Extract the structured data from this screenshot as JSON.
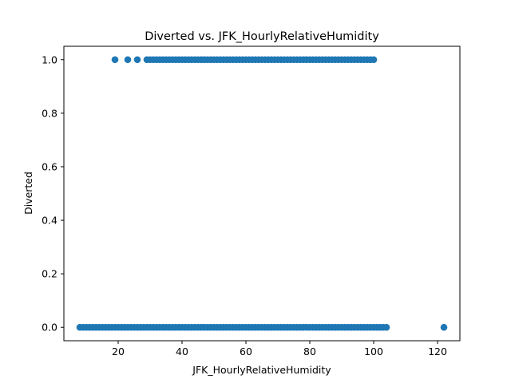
{
  "chart_data": {
    "type": "scatter",
    "title": "Diverted vs. JFK_HourlyRelativeHumidity",
    "xlabel": "JFK_HourlyRelativeHumidity",
    "ylabel": "Diverted",
    "xlim": [
      3,
      127
    ],
    "ylim": [
      -0.05,
      1.05
    ],
    "xticks": [
      20,
      40,
      60,
      80,
      100,
      120
    ],
    "xtick_labels": [
      "20",
      "40",
      "60",
      "80",
      "100",
      "120"
    ],
    "yticks": [
      0.0,
      0.2,
      0.4,
      0.6,
      0.8,
      1.0
    ],
    "ytick_labels": [
      "0.0",
      "0.2",
      "0.4",
      "0.6",
      "0.8",
      "1.0"
    ],
    "grid": false,
    "legend": "none",
    "series": [
      {
        "color": "#1f77b4",
        "points": [
          [
            8,
            0
          ],
          [
            9,
            0
          ],
          [
            10,
            0
          ],
          [
            11,
            0
          ],
          [
            12,
            0
          ],
          [
            13,
            0
          ],
          [
            14,
            0
          ],
          [
            15,
            0
          ],
          [
            16,
            0
          ],
          [
            17,
            0
          ],
          [
            18,
            0
          ],
          [
            19,
            0
          ],
          [
            20,
            0
          ],
          [
            21,
            0
          ],
          [
            22,
            0
          ],
          [
            23,
            0
          ],
          [
            24,
            0
          ],
          [
            25,
            0
          ],
          [
            26,
            0
          ],
          [
            27,
            0
          ],
          [
            28,
            0
          ],
          [
            29,
            0
          ],
          [
            30,
            0
          ],
          [
            31,
            0
          ],
          [
            32,
            0
          ],
          [
            33,
            0
          ],
          [
            34,
            0
          ],
          [
            35,
            0
          ],
          [
            36,
            0
          ],
          [
            37,
            0
          ],
          [
            38,
            0
          ],
          [
            39,
            0
          ],
          [
            40,
            0
          ],
          [
            41,
            0
          ],
          [
            42,
            0
          ],
          [
            43,
            0
          ],
          [
            44,
            0
          ],
          [
            45,
            0
          ],
          [
            46,
            0
          ],
          [
            47,
            0
          ],
          [
            48,
            0
          ],
          [
            49,
            0
          ],
          [
            50,
            0
          ],
          [
            51,
            0
          ],
          [
            52,
            0
          ],
          [
            53,
            0
          ],
          [
            54,
            0
          ],
          [
            55,
            0
          ],
          [
            56,
            0
          ],
          [
            57,
            0
          ],
          [
            58,
            0
          ],
          [
            59,
            0
          ],
          [
            60,
            0
          ],
          [
            61,
            0
          ],
          [
            62,
            0
          ],
          [
            63,
            0
          ],
          [
            64,
            0
          ],
          [
            65,
            0
          ],
          [
            66,
            0
          ],
          [
            67,
            0
          ],
          [
            68,
            0
          ],
          [
            69,
            0
          ],
          [
            70,
            0
          ],
          [
            71,
            0
          ],
          [
            72,
            0
          ],
          [
            73,
            0
          ],
          [
            74,
            0
          ],
          [
            75,
            0
          ],
          [
            76,
            0
          ],
          [
            77,
            0
          ],
          [
            78,
            0
          ],
          [
            79,
            0
          ],
          [
            80,
            0
          ],
          [
            81,
            0
          ],
          [
            82,
            0
          ],
          [
            83,
            0
          ],
          [
            84,
            0
          ],
          [
            85,
            0
          ],
          [
            86,
            0
          ],
          [
            87,
            0
          ],
          [
            88,
            0
          ],
          [
            89,
            0
          ],
          [
            90,
            0
          ],
          [
            91,
            0
          ],
          [
            92,
            0
          ],
          [
            93,
            0
          ],
          [
            94,
            0
          ],
          [
            95,
            0
          ],
          [
            96,
            0
          ],
          [
            97,
            0
          ],
          [
            98,
            0
          ],
          [
            99,
            0
          ],
          [
            100,
            0
          ],
          [
            101,
            0
          ],
          [
            102,
            0
          ],
          [
            103,
            0
          ],
          [
            104,
            0
          ],
          [
            122,
            0
          ],
          [
            19,
            1
          ],
          [
            23,
            1
          ],
          [
            26,
            1
          ],
          [
            29,
            1
          ],
          [
            30,
            1
          ],
          [
            31,
            1
          ],
          [
            32,
            1
          ],
          [
            33,
            1
          ],
          [
            34,
            1
          ],
          [
            35,
            1
          ],
          [
            36,
            1
          ],
          [
            37,
            1
          ],
          [
            38,
            1
          ],
          [
            39,
            1
          ],
          [
            40,
            1
          ],
          [
            41,
            1
          ],
          [
            42,
            1
          ],
          [
            43,
            1
          ],
          [
            44,
            1
          ],
          [
            45,
            1
          ],
          [
            46,
            1
          ],
          [
            47,
            1
          ],
          [
            48,
            1
          ],
          [
            49,
            1
          ],
          [
            50,
            1
          ],
          [
            51,
            1
          ],
          [
            52,
            1
          ],
          [
            53,
            1
          ],
          [
            54,
            1
          ],
          [
            55,
            1
          ],
          [
            56,
            1
          ],
          [
            57,
            1
          ],
          [
            58,
            1
          ],
          [
            59,
            1
          ],
          [
            60,
            1
          ],
          [
            61,
            1
          ],
          [
            62,
            1
          ],
          [
            63,
            1
          ],
          [
            64,
            1
          ],
          [
            65,
            1
          ],
          [
            66,
            1
          ],
          [
            67,
            1
          ],
          [
            68,
            1
          ],
          [
            69,
            1
          ],
          [
            70,
            1
          ],
          [
            71,
            1
          ],
          [
            72,
            1
          ],
          [
            73,
            1
          ],
          [
            74,
            1
          ],
          [
            75,
            1
          ],
          [
            76,
            1
          ],
          [
            77,
            1
          ],
          [
            78,
            1
          ],
          [
            79,
            1
          ],
          [
            80,
            1
          ],
          [
            81,
            1
          ],
          [
            82,
            1
          ],
          [
            83,
            1
          ],
          [
            84,
            1
          ],
          [
            85,
            1
          ],
          [
            86,
            1
          ],
          [
            87,
            1
          ],
          [
            88,
            1
          ],
          [
            89,
            1
          ],
          [
            90,
            1
          ],
          [
            91,
            1
          ],
          [
            92,
            1
          ],
          [
            93,
            1
          ],
          [
            94,
            1
          ],
          [
            95,
            1
          ],
          [
            96,
            1
          ],
          [
            97,
            1
          ],
          [
            98,
            1
          ],
          [
            99,
            1
          ],
          [
            100,
            1
          ]
        ]
      }
    ]
  }
}
